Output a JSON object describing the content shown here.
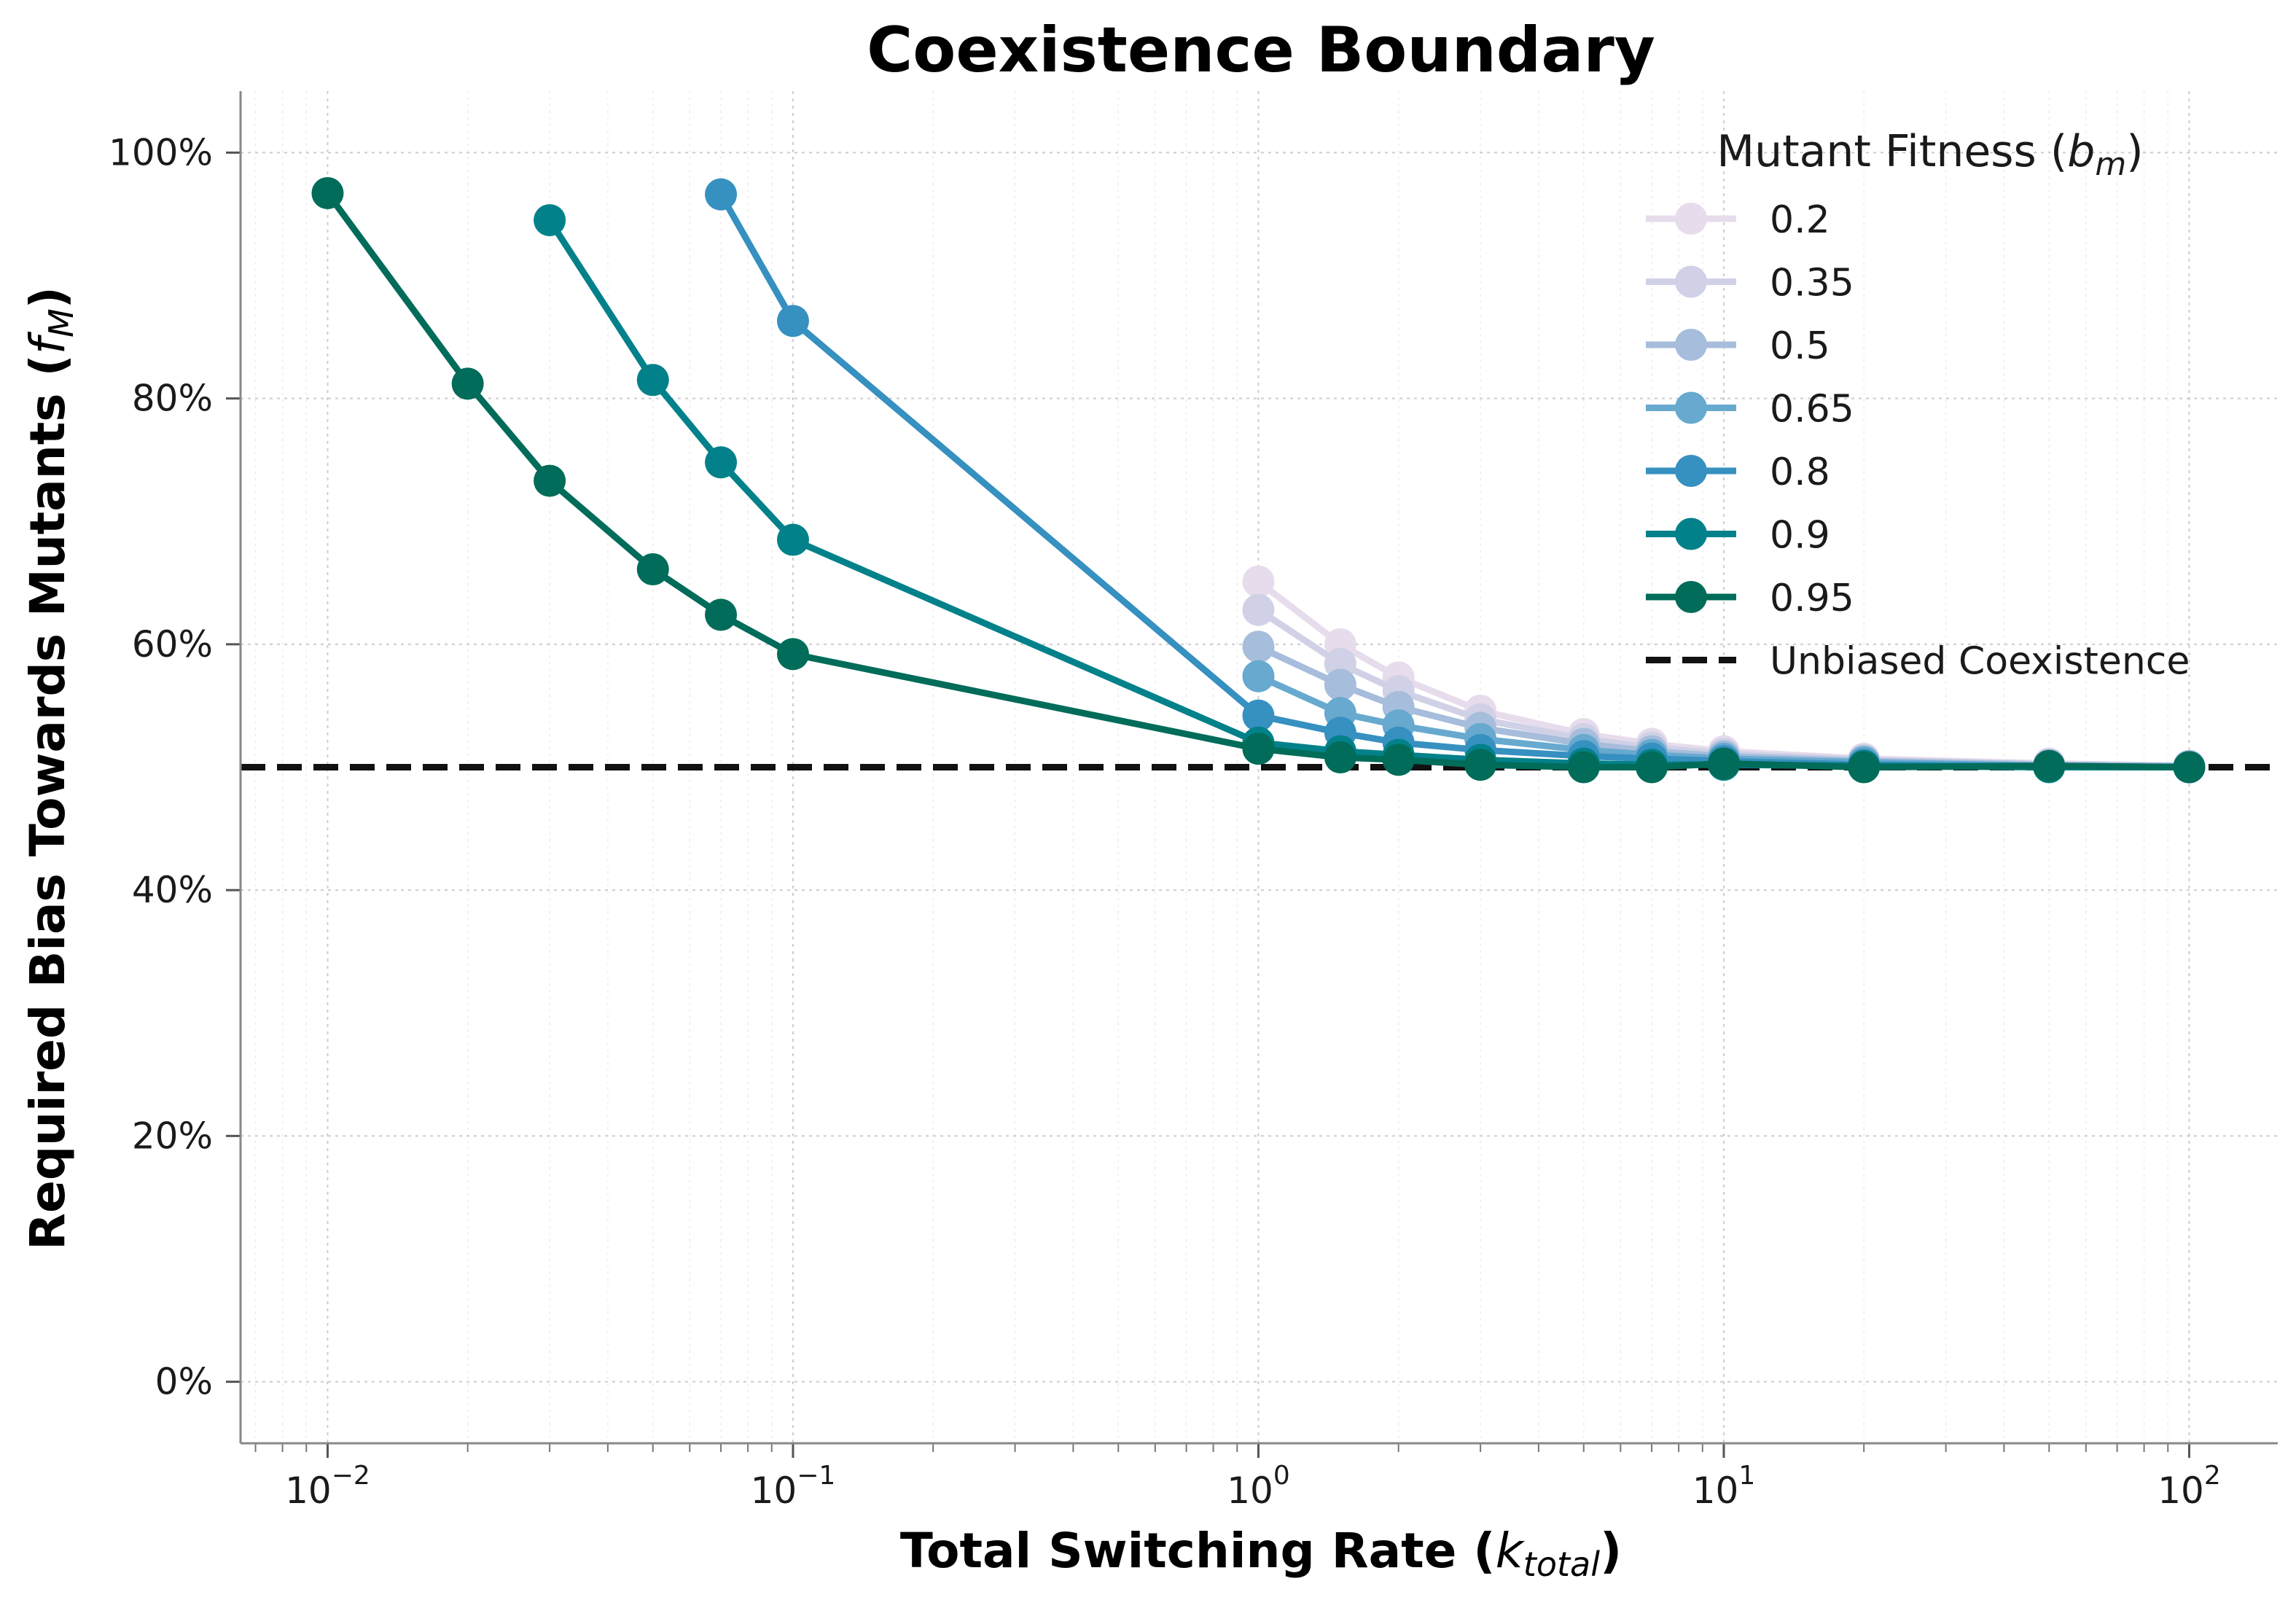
{
  "chart_data": {
    "type": "line",
    "title": "Coexistence Boundary",
    "xlabel": "Total Switching Rate (",
    "xlabel_var": "k",
    "xlabel_sub": "total",
    "xlabel_end": ")",
    "ylabel": "Required Bias Towards Mutants (",
    "ylabel_var": "f",
    "ylabel_sub": "M",
    "ylabel_end": ")",
    "xscale": "log",
    "xlim": [
      0.0065,
      155
    ],
    "ylim": [
      -0.05,
      1.05
    ],
    "x_ticks": [
      {
        "value": 0.01,
        "base": "10",
        "exp": "−2"
      },
      {
        "value": 0.1,
        "base": "10",
        "exp": "−1"
      },
      {
        "value": 1,
        "base": "10",
        "exp": "0"
      },
      {
        "value": 10,
        "base": "10",
        "exp": "1"
      },
      {
        "value": 100,
        "base": "10",
        "exp": "2"
      }
    ],
    "y_ticks": [
      {
        "value": 0.0,
        "label": "0%"
      },
      {
        "value": 0.2,
        "label": "20%"
      },
      {
        "value": 0.4,
        "label": "40%"
      },
      {
        "value": 0.6,
        "label": "60%"
      },
      {
        "value": 0.8,
        "label": "80%"
      },
      {
        "value": 1.0,
        "label": "100%"
      }
    ],
    "grid": true,
    "legend": {
      "title": "Mutant Fitness (",
      "title_var": "b",
      "title_sub": "m",
      "title_end": ")",
      "placement": "top-right"
    },
    "reference_line": {
      "y": 0.5,
      "label": "Unbiased Coexistence",
      "color": "#111111",
      "style": "dashed"
    },
    "series": [
      {
        "name": "0.2",
        "color": "#e7dcec",
        "x": [
          1,
          1.5,
          2,
          3,
          5,
          7,
          10,
          20,
          50,
          100
        ],
        "y": [
          0.651,
          0.6,
          0.573,
          0.546,
          0.527,
          0.519,
          0.513,
          0.507,
          0.503,
          0.501
        ]
      },
      {
        "name": "0.35",
        "color": "#d0d1e6",
        "x": [
          1,
          1.5,
          2,
          3,
          5,
          7,
          10,
          20,
          50,
          100
        ],
        "y": [
          0.628,
          0.584,
          0.562,
          0.539,
          0.523,
          0.516,
          0.511,
          0.506,
          0.502,
          0.501
        ]
      },
      {
        "name": "0.5",
        "color": "#a6bddb",
        "x": [
          1,
          1.5,
          2,
          3,
          5,
          7,
          10,
          20,
          50,
          100
        ],
        "y": [
          0.598,
          0.567,
          0.549,
          0.532,
          0.519,
          0.513,
          0.509,
          0.505,
          0.502,
          0.501
        ]
      },
      {
        "name": "0.65",
        "color": "#67a9cf",
        "x": [
          1,
          1.5,
          2,
          3,
          5,
          7,
          10,
          20,
          50,
          100
        ],
        "y": [
          0.574,
          0.544,
          0.534,
          0.523,
          0.514,
          0.51,
          0.507,
          0.504,
          0.501,
          0.5
        ]
      },
      {
        "name": "0.8",
        "color": "#3690c0",
        "x": [
          0.07,
          0.1,
          1,
          1.5,
          2,
          3,
          5,
          7,
          10,
          20,
          50,
          100
        ],
        "y": [
          0.966,
          0.863,
          0.542,
          0.528,
          0.52,
          0.514,
          0.509,
          0.507,
          0.505,
          0.502,
          0.501,
          0.5
        ]
      },
      {
        "name": "0.9",
        "color": "#02818a",
        "x": [
          0.03,
          0.05,
          0.07,
          0.1,
          1,
          1.5,
          2,
          3,
          5,
          7,
          10,
          20,
          50,
          100
        ],
        "y": [
          0.945,
          0.815,
          0.748,
          0.685,
          0.52,
          0.513,
          0.51,
          0.506,
          0.503,
          0.502,
          0.502,
          0.501,
          0.5,
          0.5
        ]
      },
      {
        "name": "0.95",
        "color": "#016c59",
        "x": [
          0.01,
          0.02,
          0.03,
          0.05,
          0.07,
          0.1,
          1,
          1.5,
          2,
          3,
          5,
          7,
          10,
          20,
          50,
          100
        ],
        "y": [
          0.967,
          0.812,
          0.733,
          0.661,
          0.624,
          0.592,
          0.515,
          0.508,
          0.506,
          0.502,
          0.5,
          0.5,
          0.503,
          0.5,
          0.501,
          0.5
        ]
      }
    ]
  }
}
